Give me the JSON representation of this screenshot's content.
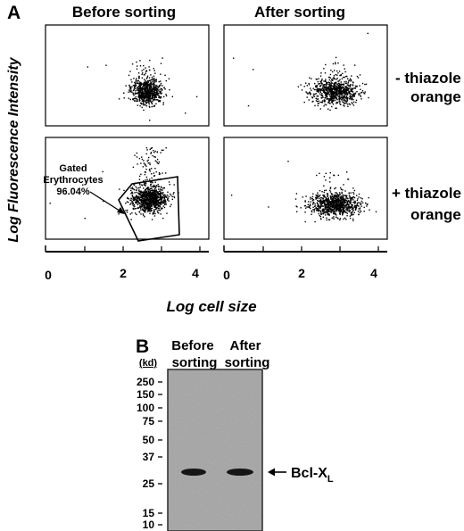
{
  "panel_a": {
    "letter": "A",
    "col_titles": [
      "Before sorting",
      "After sorting"
    ],
    "y_axis_label": "Log Fluorescence Intensity",
    "x_axis_label": "Log cell size",
    "x_ticks": [
      "0",
      "2",
      "4"
    ],
    "row_labels": [
      {
        "line1": "- thiazole",
        "line2": "orange"
      },
      {
        "line1": "+ thiazole",
        "line2": "orange"
      }
    ],
    "gate": {
      "line1": "Gated",
      "line2": "Erythrocytes",
      "line3": "96.04%"
    },
    "scatter_centers": [
      {
        "panel": "before-minus",
        "x": 2.55,
        "y": 1.2
      },
      {
        "panel": "after-minus",
        "x": 2.8,
        "y": 1.2
      },
      {
        "panel": "before-plus",
        "x": 2.6,
        "y": 1.45
      },
      {
        "panel": "after-plus",
        "x": 2.8,
        "y": 1.2
      }
    ]
  },
  "panel_b": {
    "letter": "B",
    "unit": "(kd)",
    "col_headers": [
      {
        "line1": "Before",
        "line2": "sorting"
      },
      {
        "line1": "After",
        "line2": "sorting"
      }
    ],
    "markers": [
      "250",
      "150",
      "100",
      "75",
      "50",
      "37",
      "25",
      "15",
      "10"
    ],
    "band_label": "Bcl-X",
    "band_label_sub": "L",
    "arrow": "←",
    "band_marker_kd": 30
  }
}
